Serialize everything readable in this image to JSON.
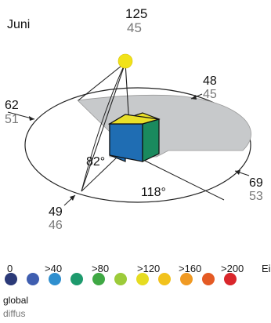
{
  "month": "Juni",
  "sun": {
    "global": "125",
    "diffus": "45"
  },
  "faces": {
    "west": {
      "global": "62",
      "diffus": "51"
    },
    "north": {
      "global": "48",
      "diffus": "45"
    },
    "east": {
      "global": "69",
      "diffus": "53"
    },
    "south": {
      "global": "49",
      "diffus": "46"
    }
  },
  "angles": {
    "elevation": "82°",
    "azimuth": "118°"
  },
  "legend": {
    "ticks": [
      "0",
      ">40",
      ">80",
      ">120",
      ">160",
      ">200",
      "Ei"
    ],
    "colors": [
      "#2b3a78",
      "#3f5eb0",
      "#2f8fcf",
      "#1e9a6d",
      "#3fa844",
      "#9ccb3a",
      "#e6dc21",
      "#f2c21c",
      "#f09a23",
      "#e45a24",
      "#d9262b"
    ],
    "global_label": "global",
    "diffus_label": "diffus"
  },
  "colors": {
    "top_face": "#e9e02a",
    "front_face": "#1f6db3",
    "side_face": "#1a8a5e",
    "sun": "#f1e219",
    "shadow": "#c7c9cb",
    "orbit": "#222222"
  }
}
